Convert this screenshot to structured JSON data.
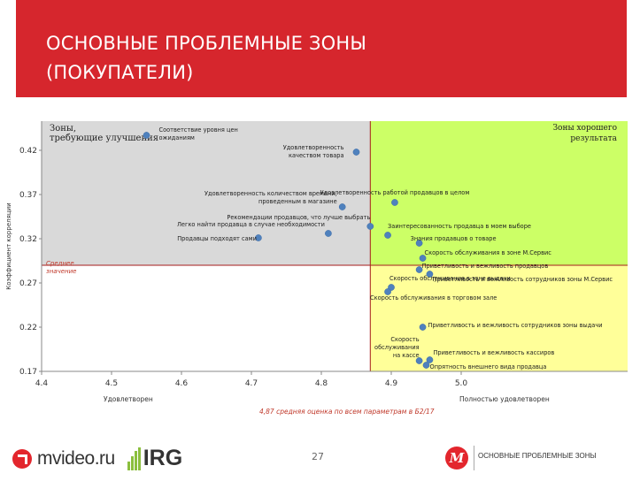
{
  "header": {
    "title_line1": "ОСНОВНЫЕ ПРОБЛЕМНЫЕ ЗОНЫ",
    "title_line2": "(ПОКУПАТЕЛИ)"
  },
  "colors": {
    "banner": "#d6262d",
    "problem_zone": "#d9d9d9",
    "good_zone": "#ccff66",
    "mid_zone": "#ffff99",
    "point": "#4f81bd",
    "reference_line": "#a61c1c",
    "annotation": "#c0392b"
  },
  "footer": {
    "brand": "mvideo.ru",
    "partner": "IRG",
    "page_number": "27",
    "caption": "ОСНОВНЫЕ ПРОБЛЕМНЫЕ ЗОНЫ"
  },
  "chart_data": {
    "type": "scatter",
    "title": "",
    "xlabel": "",
    "ylabel": "Коэффициент корреляции",
    "xlim": [
      4.4,
      5.0
    ],
    "ylim": [
      0.17,
      0.45
    ],
    "x_ticks": [
      "4.4",
      "4.5",
      "4.6",
      "4.7",
      "4.8",
      "4.9",
      "5.0"
    ],
    "y_ticks": [
      "0.42",
      "0.37",
      "0.32",
      "0.27",
      "0.22",
      "0.17"
    ],
    "x_end_labels": {
      "left": "Удовлетворен",
      "right": "Полностью удовлетворен"
    },
    "zones": {
      "problem_label": "Зоны, требующие улучшения",
      "good_label": "Зоны хорошего результата",
      "boundary_x": 4.87,
      "boundary_y": 0.29,
      "mid_label": "Среднее значение"
    },
    "reference_note": "4,87 средняя оценка по всем параметрам в Б2/17",
    "points": [
      {
        "x": 4.55,
        "y": 0.437,
        "label": "Соответствие уровня цен ожиданиям"
      },
      {
        "x": 4.85,
        "y": 0.418,
        "label": "Удовлетворенность качеством товара"
      },
      {
        "x": 4.83,
        "y": 0.356,
        "label": "Удовлетворенность количеством времени, проведенным в магазине"
      },
      {
        "x": 4.905,
        "y": 0.361,
        "label": "Удовлетворенность работой продавцов в целом"
      },
      {
        "x": 4.87,
        "y": 0.334,
        "label": "Рекомендации продавцов, что лучше выбрать"
      },
      {
        "x": 4.81,
        "y": 0.326,
        "label": "Легко найти продавца в случае необходимости"
      },
      {
        "x": 4.71,
        "y": 0.321,
        "label": "Продавцы подходят сами"
      },
      {
        "x": 4.895,
        "y": 0.324,
        "label": "Заинтересованность продавца в моем выборе"
      },
      {
        "x": 4.94,
        "y": 0.315,
        "label": "Знания продавцов о товаре"
      },
      {
        "x": 4.945,
        "y": 0.298,
        "label": "Скорость обслуживания в зоне М.Сервис"
      },
      {
        "x": 4.94,
        "y": 0.285,
        "label": "Приветливость и вежливость продавцов"
      },
      {
        "x": 4.955,
        "y": 0.28,
        "label": "Приветливость и вежливость сотрудников зоны М.Сервис"
      },
      {
        "x": 4.9,
        "y": 0.265,
        "label": "Скорость обслуживания в зоне выдачи"
      },
      {
        "x": 4.895,
        "y": 0.26,
        "label": "Скорость обслуживания в торговом зале"
      },
      {
        "x": 4.945,
        "y": 0.22,
        "label": "Приветливость и вежливость сотрудников зоны выдачи"
      },
      {
        "x": 4.94,
        "y": 0.182,
        "label": "Скорость обслуживания на кассе"
      },
      {
        "x": 4.955,
        "y": 0.183,
        "label": "Приветливость и вежливость кассиров"
      },
      {
        "x": 4.95,
        "y": 0.177,
        "label": "Опрятность внешнего вида продавца"
      }
    ]
  }
}
